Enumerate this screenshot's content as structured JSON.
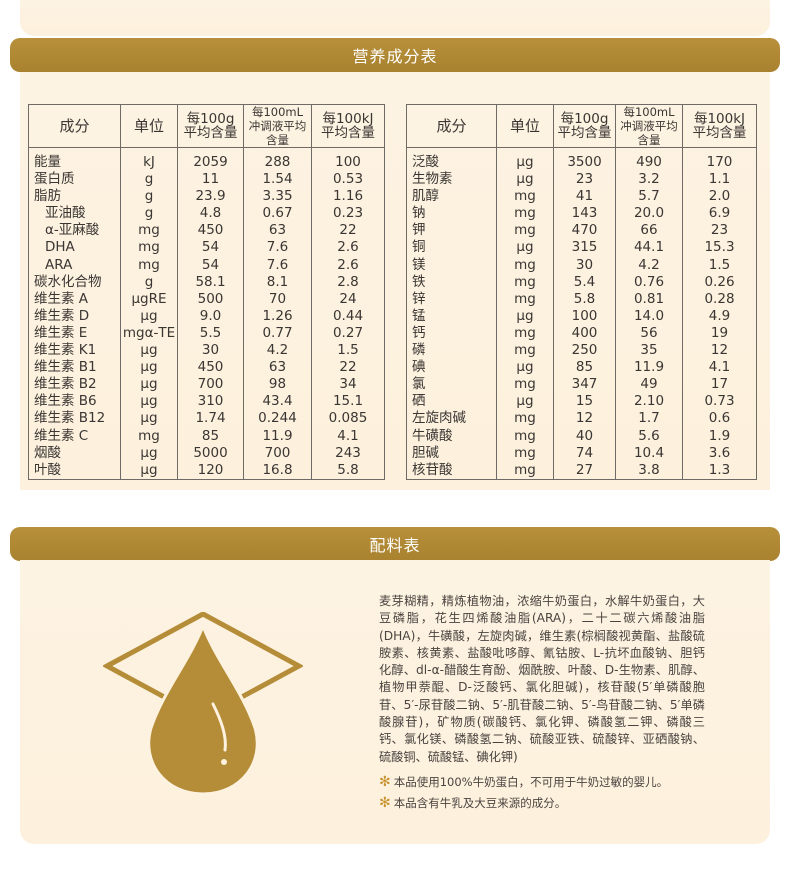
{
  "nutrition": {
    "title": "营养成分表",
    "headers": {
      "component": "成分",
      "unit": "单位",
      "per100g": [
        "每100g",
        "平均含量"
      ],
      "per100ml": [
        "每100mL",
        "冲调液平均含量"
      ],
      "per100kj": [
        "每100kJ",
        "平均含量"
      ]
    },
    "left_rows": [
      {
        "name": "能量",
        "unit": "kJ",
        "g": "2059",
        "ml": "288",
        "kj": "100"
      },
      {
        "name": "蛋白质",
        "unit": "g",
        "g": "11",
        "ml": "1.54",
        "kj": "0.53"
      },
      {
        "name": "脂肪",
        "unit": "g",
        "g": "23.9",
        "ml": "3.35",
        "kj": "1.16"
      },
      {
        "name": "亚油酸",
        "unit": "g",
        "g": "4.8",
        "ml": "0.67",
        "kj": "0.23",
        "indent": true
      },
      {
        "name": "α-亚麻酸",
        "unit": "mg",
        "g": "450",
        "ml": "63",
        "kj": "22",
        "indent": true
      },
      {
        "name": "DHA",
        "unit": "mg",
        "g": "54",
        "ml": "7.6",
        "kj": "2.6",
        "indent": true
      },
      {
        "name": "ARA",
        "unit": "mg",
        "g": "54",
        "ml": "7.6",
        "kj": "2.6",
        "indent": true
      },
      {
        "name": "碳水化合物",
        "unit": "g",
        "g": "58.1",
        "ml": "8.1",
        "kj": "2.8"
      },
      {
        "name": "维生素 A",
        "unit": "μgRE",
        "g": "500",
        "ml": "70",
        "kj": "24"
      },
      {
        "name": "维生素 D",
        "unit": "μg",
        "g": "9.0",
        "ml": "1.26",
        "kj": "0.44"
      },
      {
        "name": "维生素 E",
        "unit": "mgα-TE",
        "g": "5.5",
        "ml": "0.77",
        "kj": "0.27"
      },
      {
        "name": "维生素 K1",
        "unit": "μg",
        "g": "30",
        "ml": "4.2",
        "kj": "1.5"
      },
      {
        "name": "维生素 B1",
        "unit": "μg",
        "g": "450",
        "ml": "63",
        "kj": "22"
      },
      {
        "name": "维生素 B2",
        "unit": "μg",
        "g": "700",
        "ml": "98",
        "kj": "34"
      },
      {
        "name": "维生素 B6",
        "unit": "μg",
        "g": "310",
        "ml": "43.4",
        "kj": "15.1"
      },
      {
        "name": "维生素 B12",
        "unit": "μg",
        "g": "1.74",
        "ml": "0.244",
        "kj": "0.085"
      },
      {
        "name": "维生素 C",
        "unit": "mg",
        "g": "85",
        "ml": "11.9",
        "kj": "4.1"
      },
      {
        "name": "烟酸",
        "unit": "μg",
        "g": "5000",
        "ml": "700",
        "kj": "243"
      },
      {
        "name": "叶酸",
        "unit": "μg",
        "g": "120",
        "ml": "16.8",
        "kj": "5.8"
      }
    ],
    "right_rows": [
      {
        "name": "泛酸",
        "unit": "μg",
        "g": "3500",
        "ml": "490",
        "kj": "170"
      },
      {
        "name": "生物素",
        "unit": "μg",
        "g": "23",
        "ml": "3.2",
        "kj": "1.1"
      },
      {
        "name": "肌醇",
        "unit": "mg",
        "g": "41",
        "ml": "5.7",
        "kj": "2.0"
      },
      {
        "name": "钠",
        "unit": "mg",
        "g": "143",
        "ml": "20.0",
        "kj": "6.9"
      },
      {
        "name": "钾",
        "unit": "mg",
        "g": "470",
        "ml": "66",
        "kj": "23"
      },
      {
        "name": "铜",
        "unit": "μg",
        "g": "315",
        "ml": "44.1",
        "kj": "15.3"
      },
      {
        "name": "镁",
        "unit": "mg",
        "g": "30",
        "ml": "4.2",
        "kj": "1.5"
      },
      {
        "name": "铁",
        "unit": "mg",
        "g": "5.4",
        "ml": "0.76",
        "kj": "0.26"
      },
      {
        "name": "锌",
        "unit": "mg",
        "g": "5.8",
        "ml": "0.81",
        "kj": "0.28"
      },
      {
        "name": "锰",
        "unit": "μg",
        "g": "100",
        "ml": "14.0",
        "kj": "4.9"
      },
      {
        "name": "钙",
        "unit": "mg",
        "g": "400",
        "ml": "56",
        "kj": "19"
      },
      {
        "name": "磷",
        "unit": "mg",
        "g": "250",
        "ml": "35",
        "kj": "12"
      },
      {
        "name": "碘",
        "unit": "μg",
        "g": "85",
        "ml": "11.9",
        "kj": "4.1"
      },
      {
        "name": "氯",
        "unit": "mg",
        "g": "347",
        "ml": "49",
        "kj": "17"
      },
      {
        "name": "硒",
        "unit": "μg",
        "g": "15",
        "ml": "2.10",
        "kj": "0.73"
      },
      {
        "name": "左旋肉碱",
        "unit": "mg",
        "g": "12",
        "ml": "1.7",
        "kj": "0.6"
      },
      {
        "name": "牛磺酸",
        "unit": "mg",
        "g": "40",
        "ml": "5.6",
        "kj": "1.9"
      },
      {
        "name": "胆碱",
        "unit": "mg",
        "g": "74",
        "ml": "10.4",
        "kj": "3.6"
      },
      {
        "name": "核苷酸",
        "unit": "mg",
        "g": "27",
        "ml": "3.8",
        "kj": "1.3"
      }
    ]
  },
  "ingredients": {
    "title": "配料表",
    "text": "麦芽糊精，精炼植物油，浓缩牛奶蛋白，水解牛奶蛋白，大豆磷脂，花生四烯酸油脂(ARA)，二十二碳六烯酸油脂(DHA)，牛磺酸，左旋肉碱，维生素(棕榈酸视黄酯、盐酸硫胺素、核黄素、盐酸吡哆醇、氰钴胺、L-抗坏血酸钠、胆钙化醇、dl-α-醋酸生育酚、烟酰胺、叶酸、D-生物素、肌醇、植物甲萘醌、D-泛酸钙、氯化胆碱)，核苷酸(5′单磷酸胞苷、5′-尿苷酸二钠、5′-肌苷酸二钠、5′-鸟苷酸二钠、5′单磷酸腺苷)，矿物质(碳酸钙、氯化钾、磷酸氢二钾、磷酸三钙、氯化镁、磷酸氢二钠、硫酸亚铁、硫酸锌、亚硒酸钠、硫酸铜、硫酸锰、碘化钾)",
    "notes": [
      "本品使用100%牛奶蛋白，不可用于牛奶过敏的婴儿。",
      "本品含有牛乳及大豆来源的成分。"
    ],
    "note_icon": "star-bullet-icon",
    "drop_icon": "milk-drop-icon"
  },
  "colors": {
    "banner": "#ad8634",
    "panel_bg": "#fdf2df",
    "drop_gold": "#b58d38",
    "note_star": "#c8922e"
  }
}
